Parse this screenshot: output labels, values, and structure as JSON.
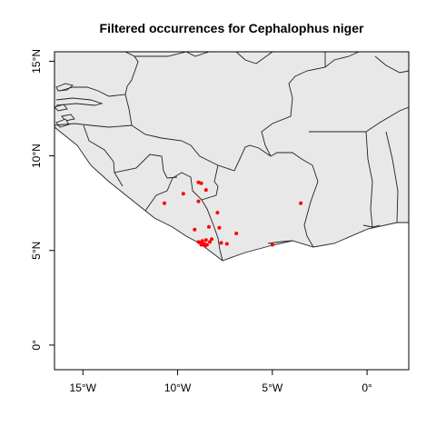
{
  "map": {
    "title": "Filtered occurrences for Cephalophus niger",
    "x_ticks": [
      {
        "label": "15°W",
        "lon": -15
      },
      {
        "label": "10°W",
        "lon": -10
      },
      {
        "label": "5°W",
        "lon": -5
      },
      {
        "label": "0°",
        "lon": 0
      }
    ],
    "y_ticks": [
      {
        "label": "0°",
        "lat": 0
      },
      {
        "label": "5°N",
        "lat": 5
      },
      {
        "label": "10°N",
        "lat": 10
      },
      {
        "label": "15°N",
        "lat": 15
      }
    ],
    "extent": {
      "lon": [
        -16.5,
        2.2
      ],
      "lat": [
        -1.3,
        15.5
      ]
    },
    "point_color": "#ff0000",
    "land_color": "#e8e8e8",
    "occurrences": [
      {
        "lon": -8.9,
        "lat": 8.6
      },
      {
        "lon": -8.75,
        "lat": 8.55
      },
      {
        "lon": -8.5,
        "lat": 8.2
      },
      {
        "lon": -9.7,
        "lat": 8.0
      },
      {
        "lon": -10.7,
        "lat": 7.5
      },
      {
        "lon": -8.9,
        "lat": 7.6
      },
      {
        "lon": -7.9,
        "lat": 7.0
      },
      {
        "lon": -9.1,
        "lat": 6.1
      },
      {
        "lon": -8.35,
        "lat": 6.25
      },
      {
        "lon": -7.8,
        "lat": 6.2
      },
      {
        "lon": -6.9,
        "lat": 5.9
      },
      {
        "lon": -8.2,
        "lat": 5.6
      },
      {
        "lon": -8.5,
        "lat": 5.55
      },
      {
        "lon": -8.7,
        "lat": 5.5
      },
      {
        "lon": -8.8,
        "lat": 5.4
      },
      {
        "lon": -8.6,
        "lat": 5.35
      },
      {
        "lon": -8.75,
        "lat": 5.3
      },
      {
        "lon": -8.45,
        "lat": 5.3
      },
      {
        "lon": -8.9,
        "lat": 5.45
      },
      {
        "lon": -8.3,
        "lat": 5.45
      },
      {
        "lon": -8.55,
        "lat": 5.25
      },
      {
        "lon": -7.7,
        "lat": 5.4
      },
      {
        "lon": -7.4,
        "lat": 5.35
      },
      {
        "lon": -5.0,
        "lat": 5.3
      },
      {
        "lon": -3.5,
        "lat": 7.5
      }
    ]
  }
}
